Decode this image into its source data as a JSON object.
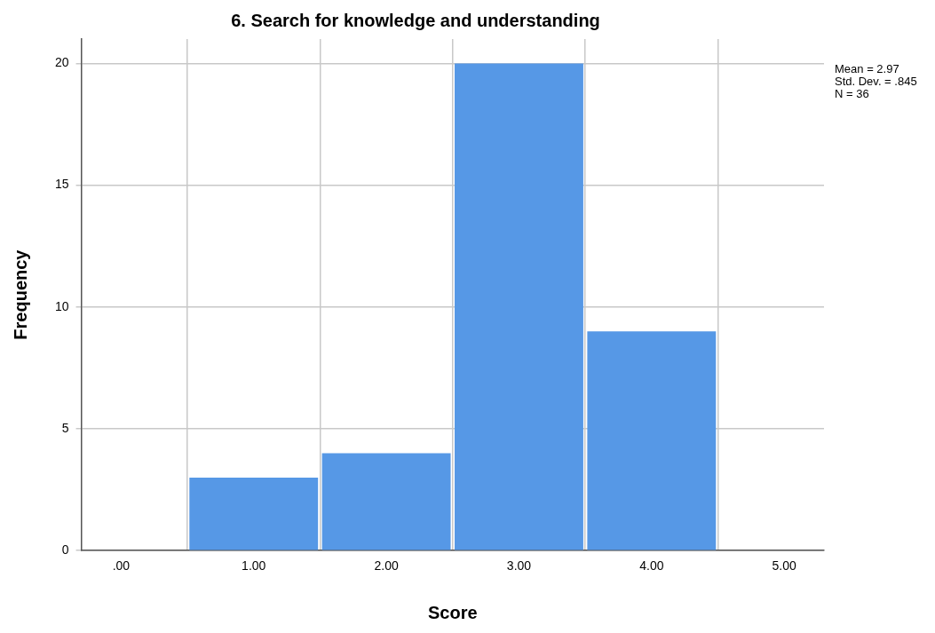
{
  "chart_data": {
    "type": "histogram",
    "title": "6. Search for knowledge and understanding",
    "xlabel": "Score",
    "ylabel": "Frequency",
    "bins": [
      0.5,
      1.5,
      2.5,
      3.5,
      4.5
    ],
    "values": [
      3,
      4,
      20,
      9
    ],
    "color": "#5698e6",
    "xlim": [
      -0.3,
      5.3
    ],
    "xticks": [
      {
        "value": 0,
        "label": ".00"
      },
      {
        "value": 1,
        "label": "1.00"
      },
      {
        "value": 2,
        "label": "2.00"
      },
      {
        "value": 3,
        "label": "3.00"
      },
      {
        "value": 4,
        "label": "4.00"
      },
      {
        "value": 5,
        "label": "5.00"
      }
    ],
    "ylim": [
      0,
      21
    ],
    "yticks": [
      0,
      5,
      10,
      15,
      20
    ],
    "grid": true,
    "annotations": [
      "Mean = 2.97",
      "Std. Dev. = .845",
      "N = 36"
    ]
  }
}
